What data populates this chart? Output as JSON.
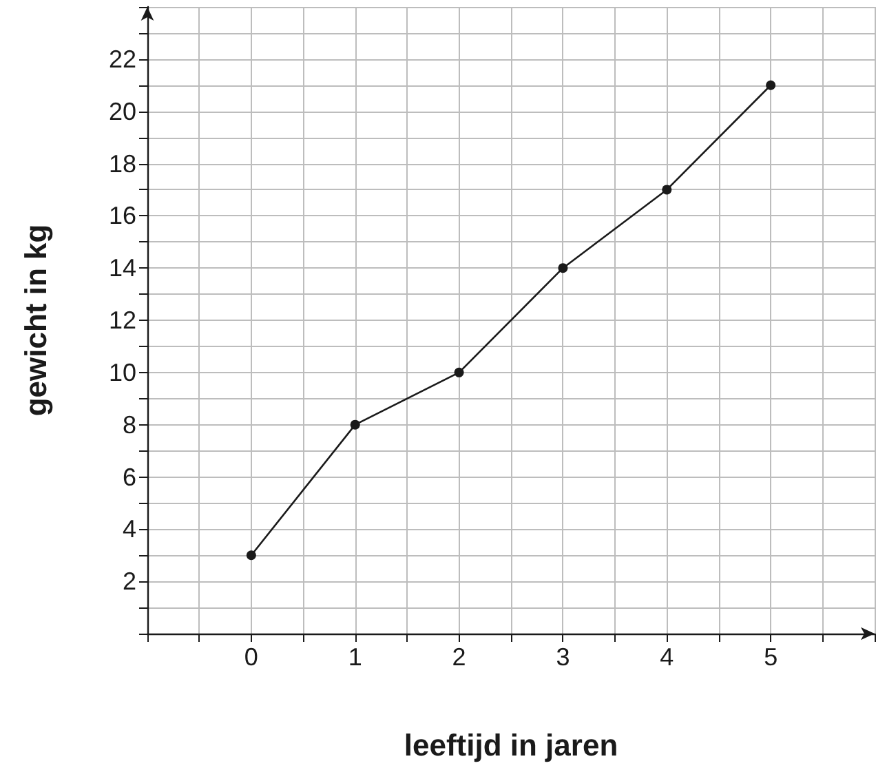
{
  "chart_data": {
    "type": "line",
    "xlabel": "leeftijd in jaren",
    "ylabel": "gewicht in kg",
    "x": [
      0,
      1,
      2,
      3,
      4,
      5
    ],
    "series": [
      {
        "color": "#1a1a1a",
        "values": [
          3,
          8,
          10,
          14,
          17,
          21
        ]
      }
    ],
    "xlim": [
      -1,
      6
    ],
    "xticks": [
      {
        "value": -1,
        "label": null
      },
      {
        "value": -0.5,
        "label": null
      },
      0,
      {
        "value": 0.5,
        "label": null
      },
      1,
      {
        "value": 1.5,
        "label": null
      },
      2,
      {
        "value": 2.5,
        "label": null
      },
      3,
      {
        "value": 3.5,
        "label": null
      },
      4,
      {
        "value": 4.5,
        "label": null
      },
      5,
      {
        "value": 5.5,
        "label": null
      },
      {
        "value": 6,
        "label": null
      }
    ],
    "ylim": [
      0,
      24
    ],
    "yticks": [
      {
        "value": 0,
        "label": null
      },
      {
        "value": 1,
        "label": null
      },
      2,
      {
        "value": 3,
        "label": null
      },
      4,
      {
        "value": 5,
        "label": null
      },
      6,
      {
        "value": 7,
        "label": null
      },
      8,
      {
        "value": 9,
        "label": null
      },
      10,
      {
        "value": 11,
        "label": null
      },
      12,
      {
        "value": 13,
        "label": null
      },
      14,
      {
        "value": 15,
        "label": null
      },
      16,
      {
        "value": 17,
        "label": null
      },
      18,
      {
        "value": 19,
        "label": null
      },
      20,
      {
        "value": 21,
        "label": null
      },
      22,
      {
        "value": 23,
        "label": null
      },
      {
        "value": 24,
        "label": null
      }
    ],
    "grid": true,
    "marker": "circle",
    "line_style": "solid"
  }
}
